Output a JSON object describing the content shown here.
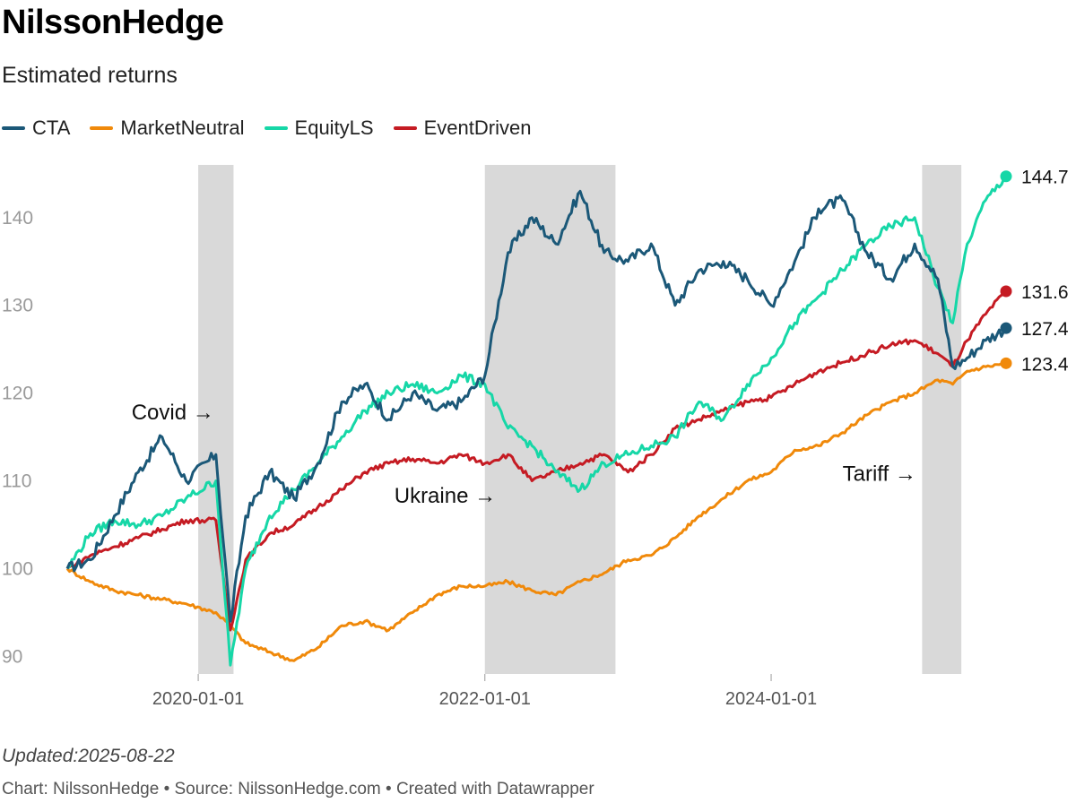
{
  "title": "NilssonHedge",
  "subtitle": "Estimated returns",
  "legend": [
    {
      "label": "CTA",
      "color": "#1b5878"
    },
    {
      "label": "MarketNeutral",
      "color": "#f0890a"
    },
    {
      "label": "EquityLS",
      "color": "#16d7a7"
    },
    {
      "label": "EventDriven",
      "color": "#c51b23"
    }
  ],
  "footer": {
    "updated": "Updated:2025-08-22",
    "credit": "Chart: NilssonHedge • Source: NilssonHedge.com • Created with Datawrapper"
  },
  "chart_data": {
    "type": "line",
    "title": "NilssonHedge",
    "subtitle": "Estimated returns",
    "x_range": [
      "2019-02-01",
      "2025-08-22"
    ],
    "ylim": [
      88,
      146
    ],
    "y_ticks": [
      90,
      100,
      110,
      120,
      130,
      140
    ],
    "y_tick_labels": [
      "90",
      "100",
      "110",
      "120",
      "130",
      "140"
    ],
    "x_ticks": [
      "2020-01-01",
      "2022-01-01",
      "2024-01-01"
    ],
    "grid": false,
    "legend_position": "top-left",
    "shaded_periods": [
      {
        "label": "Covid",
        "start": "2020-01-01",
        "end": "2020-03-31"
      },
      {
        "label": "Ukraine",
        "start": "2022-01-01",
        "end": "2022-11-30"
      },
      {
        "label": "Tariff",
        "start": "2025-01-20",
        "end": "2025-04-30"
      }
    ],
    "annotations": [
      {
        "text": "Covid →",
        "x": "2019-07-15",
        "y": 117
      },
      {
        "text": "Ukraine →",
        "x": "2021-05-15",
        "y": 107.5
      },
      {
        "text": "Tariff →",
        "x": "2024-07-01",
        "y": 110
      }
    ],
    "x": [
      "2019-02-01",
      "2019-04-01",
      "2019-06-01",
      "2019-08-01",
      "2019-10-01",
      "2019-12-01",
      "2020-02-15",
      "2020-03-23",
      "2020-05-01",
      "2020-07-01",
      "2020-09-01",
      "2020-11-01",
      "2021-01-01",
      "2021-03-01",
      "2021-05-01",
      "2021-07-01",
      "2021-09-01",
      "2021-11-01",
      "2022-01-01",
      "2022-03-01",
      "2022-05-01",
      "2022-07-01",
      "2022-09-01",
      "2022-11-01",
      "2023-01-01",
      "2023-03-01",
      "2023-05-01",
      "2023-07-01",
      "2023-09-01",
      "2023-11-01",
      "2024-01-01",
      "2024-03-01",
      "2024-05-01",
      "2024-07-01",
      "2024-09-01",
      "2024-11-01",
      "2025-01-01",
      "2025-03-01",
      "2025-04-08",
      "2025-05-15",
      "2025-07-01",
      "2025-08-22"
    ],
    "series": [
      {
        "name": "CTA",
        "color": "#1b5878",
        "end_label": "127.4",
        "values": [
          100,
          101,
          106,
          111,
          115,
          110,
          113,
          94,
          106,
          111,
          108,
          112,
          119,
          121,
          117,
          120,
          118,
          119,
          122,
          136,
          140,
          137,
          143,
          136,
          135,
          137,
          130,
          134,
          135,
          133,
          130,
          135,
          141,
          142,
          136,
          133,
          137,
          133,
          123,
          124,
          126,
          127.4
        ]
      },
      {
        "name": "MarketNeutral",
        "color": "#f0890a",
        "end_label": "123.4",
        "values": [
          100,
          98.5,
          97.5,
          97,
          96.5,
          96,
          95,
          93.5,
          91.5,
          90.5,
          89.5,
          91,
          93.5,
          94,
          93,
          95,
          97,
          98,
          98,
          98.5,
          97.5,
          97,
          98.5,
          99.5,
          101,
          101.5,
          103.5,
          106,
          108,
          110,
          111,
          113.5,
          114,
          115.5,
          117.5,
          119,
          120,
          121.5,
          121,
          122.5,
          123,
          123.4
        ]
      },
      {
        "name": "EquityLS",
        "color": "#16d7a7",
        "end_label": "144.7",
        "values": [
          100,
          104,
          105.5,
          105,
          106,
          108,
          110,
          89,
          100,
          106,
          109,
          112,
          115,
          118,
          120,
          121,
          120,
          122,
          121,
          116,
          114,
          111,
          109,
          112,
          113,
          114,
          115,
          119,
          117,
          121,
          124,
          128,
          131,
          134,
          137,
          139,
          140,
          132,
          128,
          137,
          142,
          144.7
        ]
      },
      {
        "name": "EventDriven",
        "color": "#c51b23",
        "end_label": "131.6",
        "values": [
          100,
          101.5,
          102.5,
          103.5,
          104.5,
          105.5,
          105.5,
          93,
          101,
          104,
          105,
          107,
          109,
          111,
          112,
          112.5,
          112,
          113,
          112,
          113,
          110,
          111,
          112,
          113,
          111,
          113,
          116,
          117,
          118,
          119,
          119.5,
          121,
          122.5,
          123.5,
          124.5,
          125.5,
          126,
          124.5,
          123,
          126,
          129,
          131.6
        ]
      }
    ]
  }
}
